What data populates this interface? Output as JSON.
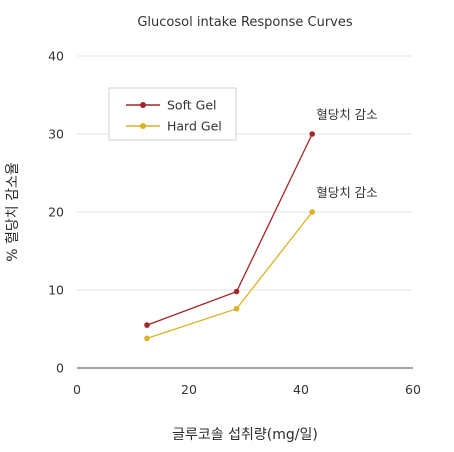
{
  "chart_data": {
    "type": "line",
    "title": "Glucosol intake Response Curves",
    "xlabel": "글루코솔 섭취량(mg/일)",
    "ylabel": "% 혈당치 감소율",
    "xlim": [
      0,
      60
    ],
    "ylim": [
      0,
      40
    ],
    "xticks": [
      0,
      20,
      40,
      60
    ],
    "yticks": [
      0,
      10,
      20,
      30,
      40
    ],
    "grid": "horizontal",
    "legend_position": "top-left",
    "series": [
      {
        "name": "Soft Gel",
        "color": "#a32628",
        "x": [
          12.5,
          28.5,
          42
        ],
        "y": [
          5.5,
          9.8,
          30
        ],
        "end_label": "혈당치 감소"
      },
      {
        "name": "Hard Gel",
        "color": "#d9b225",
        "x": [
          12.5,
          28.5,
          42
        ],
        "y": [
          3.8,
          7.6,
          20
        ],
        "end_label": "혈당치 감소"
      }
    ]
  }
}
